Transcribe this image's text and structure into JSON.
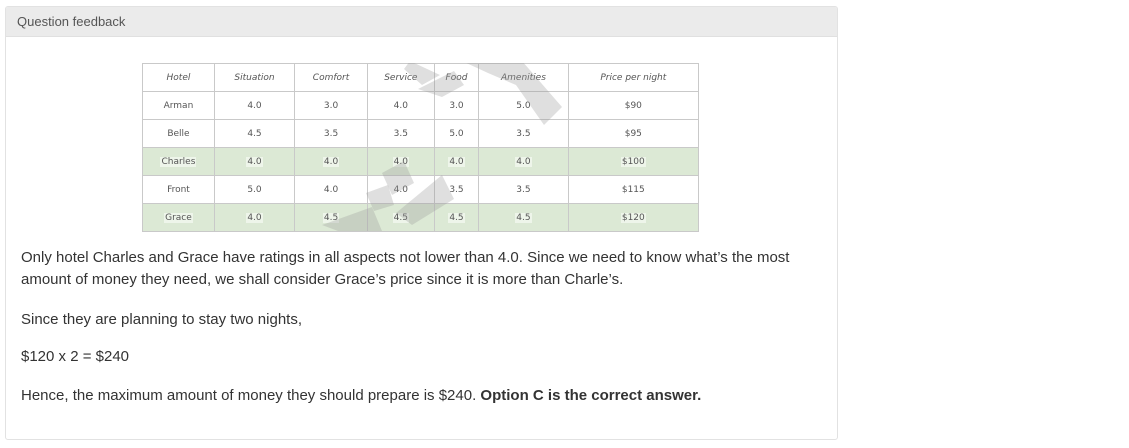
{
  "panel": {
    "header_title": "Question feedback"
  },
  "table": {
    "headers": [
      "Hotel",
      "Situation",
      "Comfort",
      "Service",
      "Food",
      "Amenities",
      "Price per night"
    ],
    "rows": [
      {
        "hotel": "Arman",
        "situation": "4.0",
        "comfort": "3.0",
        "service": "4.0",
        "food": "3.0",
        "amenities": "5.0",
        "price": "$90",
        "highlighted": false
      },
      {
        "hotel": "Belle",
        "situation": "4.5",
        "comfort": "3.5",
        "service": "3.5",
        "food": "5.0",
        "amenities": "3.5",
        "price": "$95",
        "highlighted": false
      },
      {
        "hotel": "Charles",
        "situation": "4.0",
        "comfort": "4.0",
        "service": "4.0",
        "food": "4.0",
        "amenities": "4.0",
        "price": "$100",
        "highlighted": true
      },
      {
        "hotel": "Front",
        "situation": "5.0",
        "comfort": "4.0",
        "service": "4.0",
        "food": "3.5",
        "amenities": "3.5",
        "price": "$115",
        "highlighted": false
      },
      {
        "hotel": "Grace",
        "situation": "4.0",
        "comfort": "4.5",
        "service": "4.5",
        "food": "4.5",
        "amenities": "4.5",
        "price": "$120",
        "highlighted": true
      }
    ],
    "highlight_color": "#dce9d5",
    "border_color": "#c9c9c9"
  },
  "feedback": {
    "paragraph1": "Only hotel Charles and Grace have ratings in all aspects not lower than 4.0. Since we need to know what’s the most amount of money they need, we shall consider Grace’s price since it is more than Charle’s.",
    "paragraph2": "Since they are planning to stay two nights,",
    "equation": "$120 x 2 = $240",
    "conclusion_text": "Hence, the maximum amount of money they should prepare is $240. ",
    "conclusion_bold": "Option C is the correct answer."
  }
}
